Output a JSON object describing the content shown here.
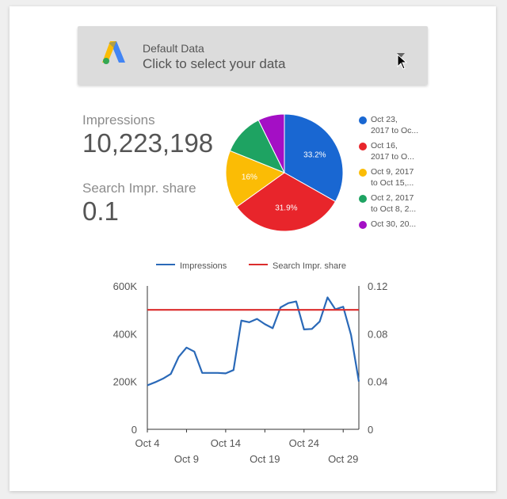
{
  "selector": {
    "title": "Default Data",
    "subtitle": "Click to select your data",
    "logo_icon": "adwords-logo-icon",
    "arrow_icon": "dropdown-arrow-icon"
  },
  "metrics": [
    {
      "label": "Impressions",
      "value": "10,223,198"
    },
    {
      "label": "Search Impr. share",
      "value": "0.1"
    }
  ],
  "chart_data": [
    {
      "type": "pie",
      "slices": [
        {
          "legend": "Oct 23,\n2017 to Oc...",
          "value": 33.2,
          "label": "33.2%",
          "color": "#1967d2"
        },
        {
          "legend": "Oct 16,\n2017 to O...",
          "value": 31.9,
          "label": "31.9%",
          "color": "#e8252b"
        },
        {
          "legend": "Oct 9, 2017\nto Oct 15,...",
          "value": 16,
          "label": "16%",
          "color": "#fbbc05"
        },
        {
          "legend": "Oct 2, 2017\nto Oct 8, 2...",
          "value": 11.6,
          "label": "",
          "color": "#1ea362"
        },
        {
          "legend": "Oct 30, 20...",
          "value": 7.3,
          "label": "",
          "color": "#a40fc5"
        }
      ],
      "legend_position": "right"
    },
    {
      "type": "line",
      "series": [
        {
          "name": "Impressions",
          "axis": "left",
          "color": "#2a69b8",
          "x": [
            4,
            5,
            6,
            7,
            8,
            9,
            10,
            11,
            12,
            13,
            14,
            15,
            16,
            17,
            18,
            19,
            20,
            21,
            22,
            23,
            24,
            25,
            26,
            27,
            28,
            29,
            30,
            31
          ],
          "values": [
            184000,
            197000,
            212000,
            232000,
            303000,
            342000,
            325000,
            236000,
            236000,
            236000,
            234000,
            248000,
            455000,
            448000,
            462000,
            440000,
            423000,
            510000,
            528000,
            535000,
            418000,
            420000,
            451000,
            552000,
            502000,
            513000,
            395000,
            200000
          ]
        },
        {
          "name": "Search Impr. share",
          "axis": "right",
          "color": "#db2c2c",
          "x": [
            4,
            31
          ],
          "values": [
            0.1,
            0.1
          ]
        }
      ],
      "y_left": {
        "min": 0,
        "max": 600000,
        "ticks": [
          "0",
          "200K",
          "400K",
          "600K"
        ]
      },
      "y_right": {
        "min": 0,
        "max": 0.12,
        "ticks": [
          "0",
          "0.04",
          "0.08",
          "0.12"
        ]
      },
      "x_axis": {
        "min": 4,
        "max": 31,
        "ticks": [
          "Oct 4",
          "Oct 9",
          "Oct 14",
          "Oct 19",
          "Oct 24",
          "Oct 29"
        ]
      },
      "legend_position": "top",
      "grid": false
    }
  ]
}
